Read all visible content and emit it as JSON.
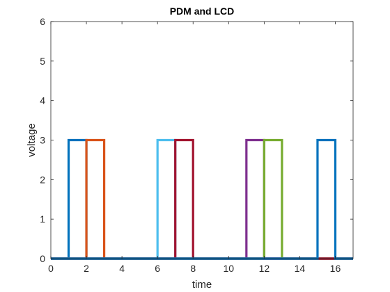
{
  "chart_data": {
    "type": "line",
    "title": "PDM and LCD",
    "xlabel": "time",
    "ylabel": "voltage",
    "xlim": [
      0,
      17
    ],
    "ylim": [
      0,
      6
    ],
    "xticks": [
      0,
      2,
      4,
      6,
      8,
      10,
      12,
      14,
      16
    ],
    "yticks": [
      0,
      1,
      2,
      3,
      4,
      5,
      6
    ],
    "grid": false,
    "legend": "none",
    "series": [
      {
        "color": "#0072BD",
        "pulse": [
          1,
          2
        ],
        "high": 3
      },
      {
        "color": "#D95319",
        "pulse": [
          2,
          3
        ],
        "high": 3
      },
      {
        "color": "#4DBEEE",
        "pulse": [
          6,
          7
        ],
        "high": 3
      },
      {
        "color": "#A2142F",
        "pulse": [
          7,
          8
        ],
        "high": 3
      },
      {
        "color": "#7E2F8E",
        "pulse": [
          11,
          12
        ],
        "high": 3
      },
      {
        "color": "#77AC30",
        "pulse": [
          12,
          13
        ],
        "high": 3
      },
      {
        "color": "#A2142F",
        "pulse": [
          15,
          16
        ],
        "high": 0
      },
      {
        "color": "#0072BD",
        "pulse": [
          15,
          16
        ],
        "high": 3
      }
    ]
  }
}
